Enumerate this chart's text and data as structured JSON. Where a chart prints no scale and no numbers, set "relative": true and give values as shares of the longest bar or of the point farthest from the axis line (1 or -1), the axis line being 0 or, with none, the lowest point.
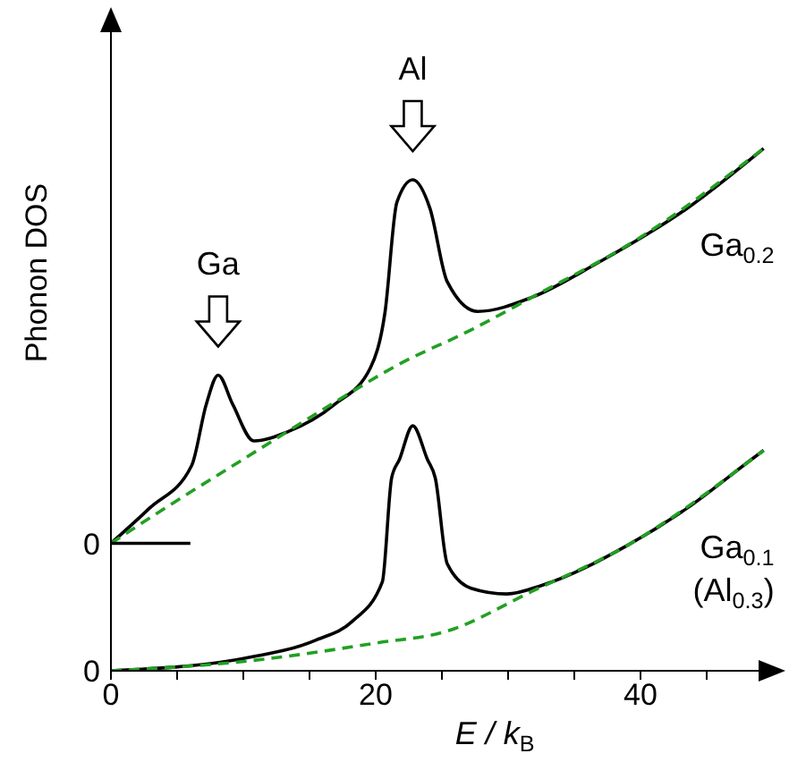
{
  "chart_data": {
    "type": "line",
    "relative": true,
    "xlabel": "E / k$_{B}$",
    "ylabel": "Phonon DOS",
    "xlim": [
      0,
      50
    ],
    "xticks": [
      0,
      {
        "value": 5,
        "label": null
      },
      {
        "value": 10,
        "label": null
      },
      {
        "value": 15,
        "label": null
      },
      20,
      {
        "value": 25,
        "label": null
      },
      {
        "value": 30,
        "label": null
      },
      {
        "value": 35,
        "label": null
      },
      40,
      {
        "value": 45,
        "label": null
      }
    ],
    "marker": "none",
    "series": [
      {
        "name": "Ga$_{0.2}$",
        "color": "#000000",
        "line_style": "solid",
        "x": [
          0,
          2.9,
          6.1,
          7.2,
          8.1,
          9.2,
          10.8,
          13.3,
          16.9,
          19.6,
          20.7,
          21.6,
          22.8,
          24.1,
          25.4,
          27.7,
          31.8,
          36.7,
          43.5,
          49.3
        ],
        "values": [
          0.244,
          0.311,
          0.393,
          0.51,
          0.566,
          0.51,
          0.44,
          0.457,
          0.51,
          0.58,
          0.686,
          0.897,
          0.94,
          0.885,
          0.745,
          0.688,
          0.715,
          0.78,
          0.885,
          1.0
        ]
      },
      {
        "color": "#22a022",
        "line_style": "dashed",
        "x": [
          0,
          4,
          10,
          16,
          22,
          27,
          31.8,
          40,
          49.3
        ],
        "values": [
          0.244,
          0.31,
          0.405,
          0.5,
          0.59,
          0.65,
          0.715,
          0.83,
          1.0
        ]
      },
      {
        "name": "Ga$_{0.1}$ (Al$_{0.3}$)",
        "color": "#000000",
        "line_style": "solid",
        "x": [
          0,
          10.1,
          15.5,
          18.2,
          20.5,
          21.2,
          21.8,
          22.8,
          23.9,
          24.5,
          25.4,
          27.2,
          29.9,
          32.6,
          39,
          43.5,
          48.4,
          49.3
        ],
        "values": [
          0,
          0.024,
          0.059,
          0.094,
          0.17,
          0.369,
          0.405,
          0.469,
          0.405,
          0.369,
          0.205,
          0.158,
          0.147,
          0.164,
          0.24,
          0.311,
          0.405,
          0.422
        ]
      },
      {
        "color": "#22a022",
        "line_style": "dashed",
        "x": [
          0,
          10.1,
          20,
          25.4,
          31.8,
          39,
          49.3
        ],
        "values": [
          0,
          0.018,
          0.053,
          0.076,
          0.152,
          0.24,
          0.422
        ]
      },
      {
        "color": "#000000",
        "line_style": "solid",
        "x": [
          0,
          6
        ],
        "values": [
          0.244,
          0.244
        ]
      }
    ],
    "annotations": [
      {
        "text": "Ga",
        "x": 8.1,
        "y": 0.566
      },
      {
        "text": "Al",
        "x": 22.8,
        "y": 0.94
      },
      {
        "text": "0",
        "x": 0,
        "y": 0
      },
      {
        "text": "0",
        "x": 0,
        "y": 0.244
      }
    ]
  }
}
